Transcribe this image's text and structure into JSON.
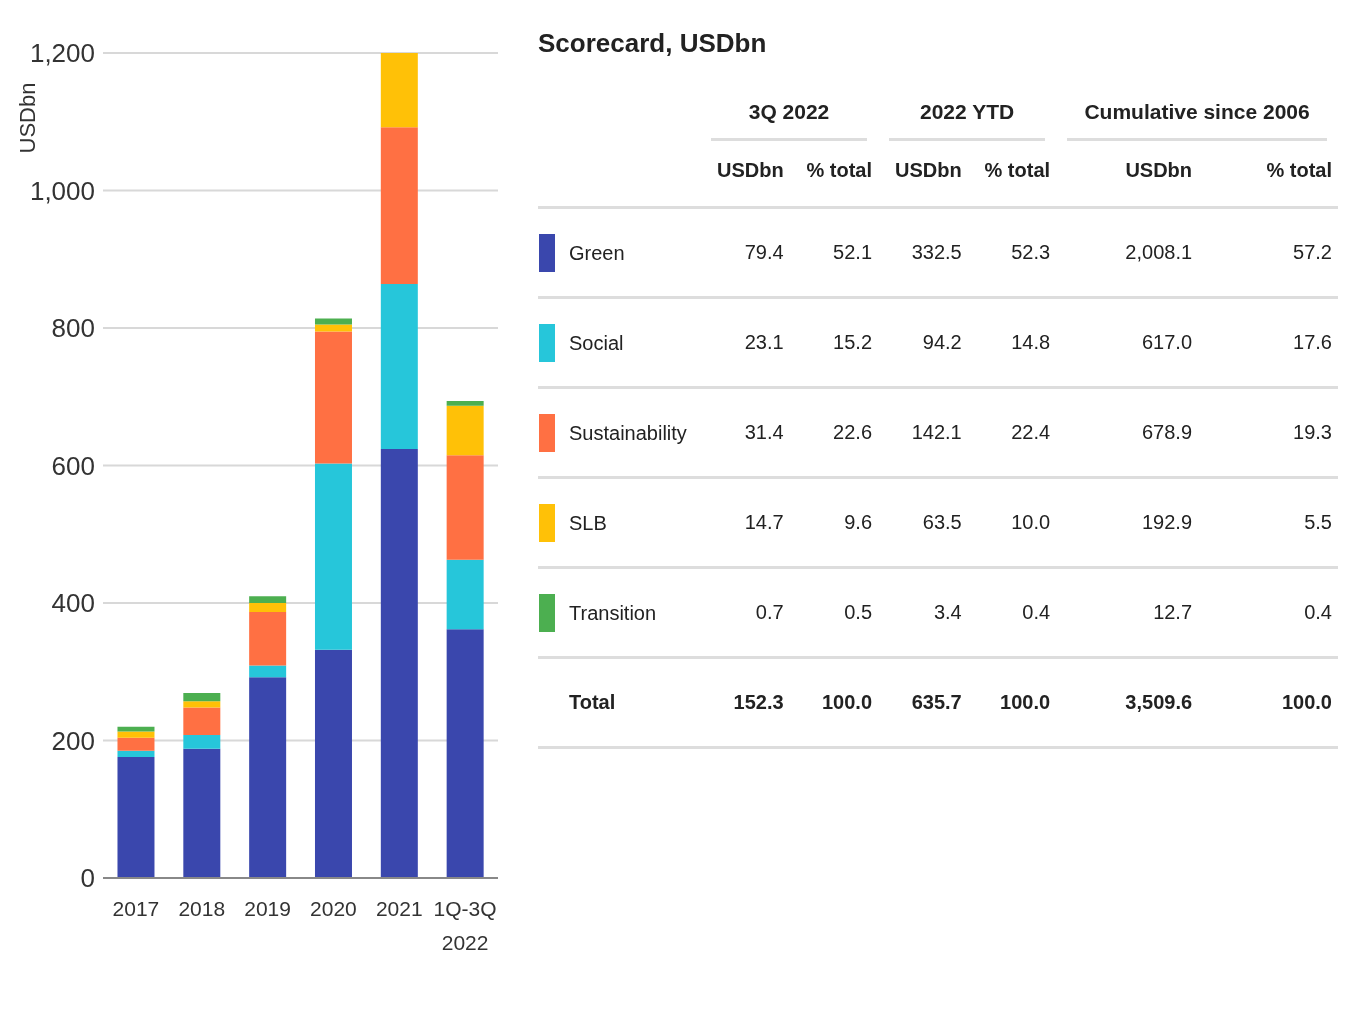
{
  "chart_data": [
    {
      "type": "bar",
      "ylabel": "USDbn",
      "stacked": true,
      "grid": "y",
      "categories": [
        "2017",
        "2018",
        "2019",
        "2020",
        "2021",
        "1Q-3Q 2022"
      ],
      "ylim": [
        0,
        1200
      ],
      "yticks": [
        0,
        200,
        400,
        600,
        800,
        {
          "value": 1000,
          "label": "1,000"
        },
        {
          "value": 1200,
          "label": "1,200"
        }
      ],
      "series": [
        {
          "color": "#3a47ad",
          "values": [
            176,
            188,
            292,
            332,
            624,
            362
          ]
        },
        {
          "color": "#26c6da",
          "values": [
            9,
            20,
            17,
            271,
            240,
            101
          ]
        },
        {
          "color": "#ff7043",
          "values": [
            19,
            40,
            78,
            192,
            228,
            152
          ]
        },
        {
          "color": "#ffc107",
          "values": [
            9,
            9,
            13,
            10,
            108,
            72
          ]
        },
        {
          "color": "#4caf50",
          "values": [
            7,
            12,
            10,
            9,
            null,
            7
          ]
        }
      ]
    },
    {
      "type": "other",
      "title": "Scorecard, USDbn",
      "annotations": [
        "3Q 2022",
        "2022 YTD",
        "Cumulative since 2006"
      ],
      "categories": [
        "USDbn",
        "% total",
        "USDbn",
        "% total",
        "USDbn",
        "% total"
      ],
      "y_categories": [
        "Green",
        "Social",
        "Sustainability",
        "SLB",
        "Transition",
        "Total"
      ],
      "colors": [
        "#3a47ad",
        "#26c6da",
        "#ff7043",
        "#ffc107",
        "#4caf50",
        null
      ],
      "cell_labels": [
        [
          "79.4",
          "52.1",
          "332.5",
          "52.3",
          "2,008.1",
          "57.2"
        ],
        [
          "23.1",
          "15.2",
          "94.2",
          "14.8",
          "617.0",
          "17.6"
        ],
        [
          "31.4",
          "22.6",
          "142.1",
          "22.4",
          "678.9",
          "19.3"
        ],
        [
          "14.7",
          "9.6",
          "63.5",
          "10.0",
          "192.9",
          "5.5"
        ],
        [
          "0.7",
          "0.5",
          "3.4",
          "0.4",
          "12.7",
          "0.4"
        ],
        [
          "152.3",
          "100.0",
          "635.7",
          "100.0",
          "3,509.6",
          "100.0"
        ]
      ]
    }
  ]
}
